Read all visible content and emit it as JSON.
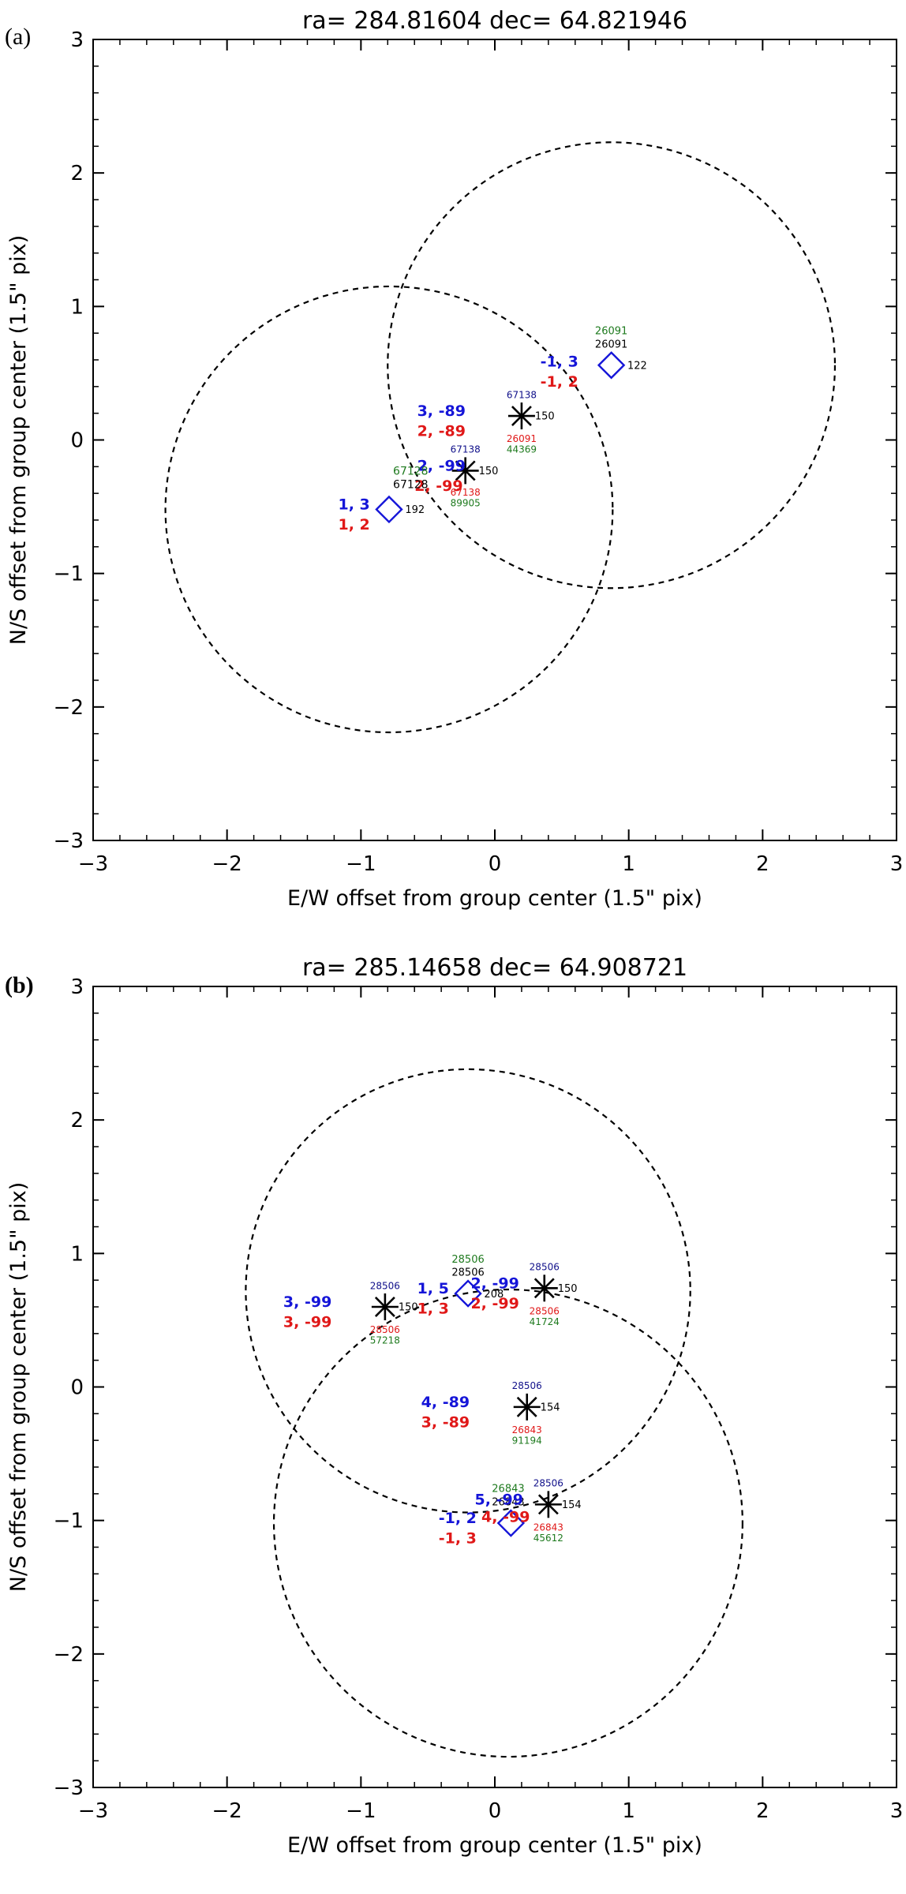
{
  "chart_data": [
    {
      "type": "scatter",
      "panel_label": "(a)",
      "title": "ra=  284.81604  dec=  64.821946",
      "xlabel": "E/W offset from group center (1.5\" pix)",
      "ylabel": "N/S offset from group center (1.5\" pix)",
      "xlim": [
        -3,
        3
      ],
      "ylim": [
        -3,
        3
      ],
      "xticks": [
        "−3",
        "−2",
        "−1",
        "0",
        "1",
        "2",
        "3"
      ],
      "yticks": [
        "−3",
        "−2",
        "−1",
        "0",
        "1",
        "2",
        "3"
      ],
      "circles": [
        {
          "cx": -0.79,
          "cy": -0.52,
          "r": 1.67
        },
        {
          "cx": 0.87,
          "cy": 0.56,
          "r": 1.67
        }
      ],
      "markers": [
        {
          "shape": "diamond",
          "x": -0.79,
          "y": -0.52
        },
        {
          "shape": "diamond",
          "x": 0.87,
          "y": 0.56
        },
        {
          "shape": "asterisk",
          "x": -0.22,
          "y": -0.23
        },
        {
          "shape": "asterisk",
          "x": 0.2,
          "y": 0.18
        }
      ],
      "labels": [
        {
          "text": "192",
          "x": -0.67,
          "y": -0.52,
          "color": "black",
          "size": 13,
          "bold": false,
          "anchor": "start"
        },
        {
          "text": "1, 3",
          "x": -1.17,
          "y": -0.48,
          "color": "blue",
          "size": 19,
          "bold": true,
          "anchor": "start"
        },
        {
          "text": "1, 2",
          "x": -1.17,
          "y": -0.63,
          "color": "red",
          "size": 19,
          "bold": true,
          "anchor": "start"
        },
        {
          "text": "122",
          "x": 0.99,
          "y": 0.56,
          "color": "black",
          "size": 13,
          "bold": false,
          "anchor": "start"
        },
        {
          "text": "26091",
          "x": 0.87,
          "y": 0.82,
          "color": "green",
          "size": 13,
          "bold": false,
          "anchor": "middle"
        },
        {
          "text": "26091",
          "x": 0.87,
          "y": 0.72,
          "color": "black",
          "size": 13,
          "bold": false,
          "anchor": "middle"
        },
        {
          "text": "-1, 3",
          "x": 0.34,
          "y": 0.59,
          "color": "blue",
          "size": 19,
          "bold": true,
          "anchor": "start"
        },
        {
          "text": "-1, 2",
          "x": 0.34,
          "y": 0.44,
          "color": "red",
          "size": 19,
          "bold": true,
          "anchor": "start"
        },
        {
          "text": "150",
          "x": 0.3,
          "y": 0.18,
          "color": "black",
          "size": 13,
          "bold": false,
          "anchor": "start"
        },
        {
          "text": "67138",
          "x": 0.2,
          "y": 0.34,
          "color": "navy",
          "size": 12,
          "bold": false,
          "anchor": "middle"
        },
        {
          "text": "3, -89",
          "x": -0.58,
          "y": 0.22,
          "color": "blue",
          "size": 19,
          "bold": true,
          "anchor": "start"
        },
        {
          "text": "2, -89",
          "x": -0.58,
          "y": 0.07,
          "color": "red",
          "size": 19,
          "bold": true,
          "anchor": "start"
        },
        {
          "text": "26091",
          "x": 0.2,
          "y": 0.01,
          "color": "red",
          "size": 12,
          "bold": false,
          "anchor": "middle"
        },
        {
          "text": "44369",
          "x": 0.2,
          "y": -0.07,
          "color": "green",
          "size": 12,
          "bold": false,
          "anchor": "middle"
        },
        {
          "text": "150",
          "x": -0.12,
          "y": -0.23,
          "color": "black",
          "size": 13,
          "bold": false,
          "anchor": "start"
        },
        {
          "text": "67138",
          "x": -0.22,
          "y": -0.07,
          "color": "navy",
          "size": 12,
          "bold": false,
          "anchor": "middle"
        },
        {
          "text": "2, -99",
          "x": -0.58,
          "y": -0.19,
          "color": "blue",
          "size": 19,
          "bold": true,
          "anchor": "start"
        },
        {
          "text": "2, -99",
          "x": -0.6,
          "y": -0.34,
          "color": "red",
          "size": 19,
          "bold": true,
          "anchor": "start"
        },
        {
          "text": "67128",
          "x": -0.76,
          "y": -0.23,
          "color": "green",
          "size": 14,
          "bold": false,
          "anchor": "start"
        },
        {
          "text": "67128",
          "x": -0.76,
          "y": -0.33,
          "color": "black",
          "size": 14,
          "bold": false,
          "anchor": "start"
        },
        {
          "text": "67138",
          "x": -0.22,
          "y": -0.39,
          "color": "red",
          "size": 12,
          "bold": false,
          "anchor": "middle"
        },
        {
          "text": "89905",
          "x": -0.22,
          "y": -0.47,
          "color": "green",
          "size": 12,
          "bold": false,
          "anchor": "middle"
        }
      ]
    },
    {
      "type": "scatter",
      "panel_label": "(b)",
      "title": "ra=  285.14658  dec=  64.908721",
      "xlabel": "E/W offset from group center (1.5\" pix)",
      "ylabel": "N/S offset from group center (1.5\" pix)",
      "xlim": [
        -3,
        3
      ],
      "ylim": [
        -3,
        3
      ],
      "xticks": [
        "−3",
        "−2",
        "−1",
        "0",
        "1",
        "2",
        "3"
      ],
      "yticks": [
        "−3",
        "−2",
        "−1",
        "0",
        "1",
        "2",
        "3"
      ],
      "circles": [
        {
          "cx": -0.2,
          "cy": 0.72,
          "r": 1.66
        },
        {
          "cx": 0.1,
          "cy": -1.02,
          "r": 1.75
        }
      ],
      "markers": [
        {
          "shape": "diamond",
          "x": -0.2,
          "y": 0.7
        },
        {
          "shape": "diamond",
          "x": 0.12,
          "y": -1.02
        },
        {
          "shape": "asterisk",
          "x": -0.82,
          "y": 0.6
        },
        {
          "shape": "asterisk",
          "x": 0.37,
          "y": 0.74
        },
        {
          "shape": "asterisk",
          "x": 0.24,
          "y": -0.15
        },
        {
          "shape": "asterisk",
          "x": 0.4,
          "y": -0.88
        }
      ],
      "labels": [
        {
          "text": "150",
          "x": -0.72,
          "y": 0.6,
          "color": "black",
          "size": 13,
          "bold": false,
          "anchor": "start"
        },
        {
          "text": "28506",
          "x": -0.82,
          "y": 0.76,
          "color": "navy",
          "size": 12,
          "bold": false,
          "anchor": "middle"
        },
        {
          "text": "3, -99",
          "x": -1.58,
          "y": 0.64,
          "color": "blue",
          "size": 19,
          "bold": true,
          "anchor": "start"
        },
        {
          "text": "3, -99",
          "x": -1.58,
          "y": 0.49,
          "color": "red",
          "size": 19,
          "bold": true,
          "anchor": "start"
        },
        {
          "text": "28506",
          "x": -0.82,
          "y": 0.43,
          "color": "red",
          "size": 12,
          "bold": false,
          "anchor": "middle"
        },
        {
          "text": "57218",
          "x": -0.82,
          "y": 0.35,
          "color": "green",
          "size": 12,
          "bold": false,
          "anchor": "middle"
        },
        {
          "text": "208",
          "x": -0.08,
          "y": 0.7,
          "color": "black",
          "size": 13,
          "bold": false,
          "anchor": "start"
        },
        {
          "text": "28506",
          "x": -0.2,
          "y": 0.96,
          "color": "green",
          "size": 13,
          "bold": false,
          "anchor": "middle"
        },
        {
          "text": "28506",
          "x": -0.2,
          "y": 0.86,
          "color": "black",
          "size": 13,
          "bold": false,
          "anchor": "middle"
        },
        {
          "text": "1, 5",
          "x": -0.58,
          "y": 0.74,
          "color": "blue",
          "size": 19,
          "bold": true,
          "anchor": "start"
        },
        {
          "text": "1, 3",
          "x": -0.58,
          "y": 0.59,
          "color": "red",
          "size": 19,
          "bold": true,
          "anchor": "start"
        },
        {
          "text": "150",
          "x": 0.47,
          "y": 0.74,
          "color": "black",
          "size": 13,
          "bold": false,
          "anchor": "start"
        },
        {
          "text": "28506",
          "x": 0.37,
          "y": 0.9,
          "color": "navy",
          "size": 12,
          "bold": false,
          "anchor": "middle"
        },
        {
          "text": "2, -99",
          "x": -0.18,
          "y": 0.78,
          "color": "blue",
          "size": 19,
          "bold": true,
          "anchor": "start"
        },
        {
          "text": "2, -99",
          "x": -0.18,
          "y": 0.63,
          "color": "red",
          "size": 19,
          "bold": true,
          "anchor": "start"
        },
        {
          "text": "28506",
          "x": 0.37,
          "y": 0.57,
          "color": "red",
          "size": 12,
          "bold": false,
          "anchor": "middle"
        },
        {
          "text": "41724",
          "x": 0.37,
          "y": 0.49,
          "color": "green",
          "size": 12,
          "bold": false,
          "anchor": "middle"
        },
        {
          "text": "154",
          "x": 0.34,
          "y": -0.15,
          "color": "black",
          "size": 13,
          "bold": false,
          "anchor": "start"
        },
        {
          "text": "28506",
          "x": 0.24,
          "y": 0.01,
          "color": "navy",
          "size": 12,
          "bold": false,
          "anchor": "middle"
        },
        {
          "text": "4, -89",
          "x": -0.55,
          "y": -0.11,
          "color": "blue",
          "size": 19,
          "bold": true,
          "anchor": "start"
        },
        {
          "text": "3, -89",
          "x": -0.55,
          "y": -0.26,
          "color": "red",
          "size": 19,
          "bold": true,
          "anchor": "start"
        },
        {
          "text": "26843",
          "x": 0.24,
          "y": -0.32,
          "color": "red",
          "size": 12,
          "bold": false,
          "anchor": "middle"
        },
        {
          "text": "91194",
          "x": 0.24,
          "y": -0.4,
          "color": "green",
          "size": 12,
          "bold": false,
          "anchor": "middle"
        },
        {
          "text": "154",
          "x": 0.5,
          "y": -0.88,
          "color": "black",
          "size": 13,
          "bold": false,
          "anchor": "start"
        },
        {
          "text": "28506",
          "x": 0.4,
          "y": -0.72,
          "color": "navy",
          "size": 12,
          "bold": false,
          "anchor": "middle"
        },
        {
          "text": "26843",
          "x": 0.1,
          "y": -0.76,
          "color": "green",
          "size": 13,
          "bold": false,
          "anchor": "middle"
        },
        {
          "text": "26843",
          "x": 0.1,
          "y": -0.86,
          "color": "black",
          "size": 13,
          "bold": false,
          "anchor": "middle"
        },
        {
          "text": "5, -99",
          "x": -0.15,
          "y": -0.84,
          "color": "blue",
          "size": 19,
          "bold": true,
          "anchor": "start"
        },
        {
          "text": "-1, 2",
          "x": -0.42,
          "y": -0.98,
          "color": "blue",
          "size": 19,
          "bold": true,
          "anchor": "start"
        },
        {
          "text": "4, -99",
          "x": -0.1,
          "y": -0.97,
          "color": "red",
          "size": 19,
          "bold": true,
          "anchor": "start"
        },
        {
          "text": "-1, 3",
          "x": -0.42,
          "y": -1.13,
          "color": "red",
          "size": 19,
          "bold": true,
          "anchor": "start"
        },
        {
          "text": "26843",
          "x": 0.4,
          "y": -1.05,
          "color": "red",
          "size": 12,
          "bold": false,
          "anchor": "middle"
        },
        {
          "text": "45612",
          "x": 0.4,
          "y": -1.13,
          "color": "green",
          "size": 12,
          "bold": false,
          "anchor": "middle"
        }
      ]
    }
  ]
}
